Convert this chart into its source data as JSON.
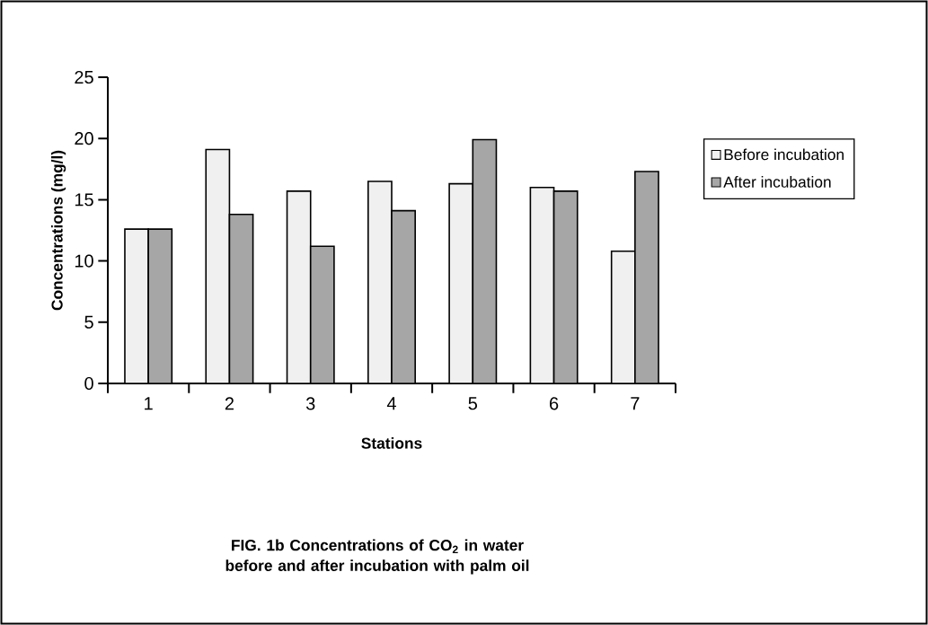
{
  "chart_data": {
    "type": "bar",
    "title": "FIG. 1b Concentrations of CO$_{2}$ in water before and after incubation with palm oil",
    "xlabel": "Stations",
    "ylabel": "Concentrations (mg/l)",
    "categories": [
      "1",
      "2",
      "3",
      "4",
      "5",
      "6",
      "7"
    ],
    "series": [
      {
        "name": "Before incubation",
        "color": "#f0f0f0",
        "values": [
          12.6,
          19.1,
          15.7,
          16.5,
          16.3,
          16.0,
          10.8
        ]
      },
      {
        "name": "After incubation",
        "color": "#a6a6a6",
        "values": [
          12.6,
          13.8,
          11.2,
          14.1,
          19.9,
          15.7,
          17.3
        ]
      }
    ],
    "ylim": [
      0,
      25
    ],
    "yticks": [
      0,
      5,
      10,
      15,
      20,
      25
    ],
    "grid": false,
    "legend": "right"
  }
}
